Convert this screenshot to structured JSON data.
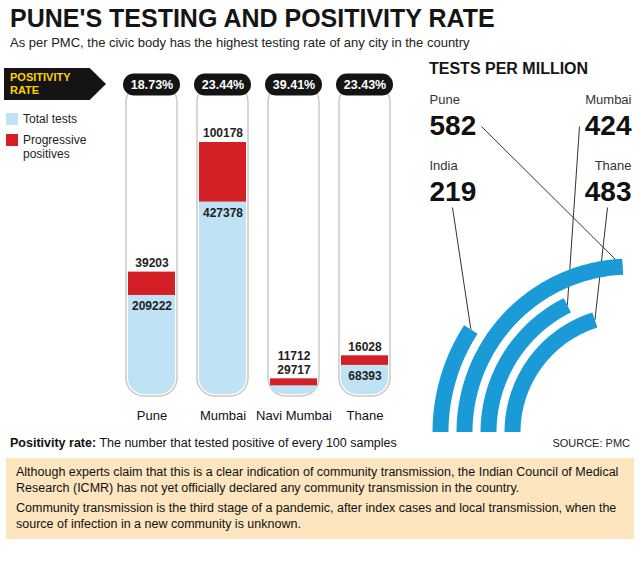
{
  "chart_data": [
    {
      "type": "bar",
      "title": "PUNE'S TESTING AND POSITIVITY RATE",
      "subtitle": "As per PMC, the civic body has the highest testing rate of any city in the country",
      "categories": [
        "Pune",
        "Mumbai",
        "Navi Mumbai",
        "Thane"
      ],
      "series": [
        {
          "name": "Total tests",
          "color": "#bfe2f4",
          "values": [
            209222,
            427378,
            29717,
            68393
          ]
        },
        {
          "name": "Progressive positives",
          "color": "#d41f26",
          "values": [
            39203,
            100178,
            11712,
            16028
          ]
        }
      ],
      "positivity_rate": {
        "label": "POSITIVITY RATE",
        "values": [
          18.73,
          23.44,
          39.41,
          23.43
        ],
        "value_labels": [
          "18.73%",
          "23.44%",
          "39.41%",
          "23.43%"
        ]
      },
      "ylim": [
        0,
        525000
      ],
      "tick_labels": "x",
      "legend": "top-left",
      "data_labels": true
    },
    {
      "type": "arc",
      "title": "TESTS PER MILLION",
      "categories": [
        "Pune",
        "Mumbai",
        "India",
        "Thane"
      ],
      "values": [
        582,
        424,
        219,
        483
      ],
      "color": "#1a9bd8",
      "ylim": [
        0,
        600
      ],
      "tick_labels": false,
      "data_labels": true
    }
  ],
  "note": {
    "term": "Positivity rate:",
    "text": "The number that tested positive of every 100 samples"
  },
  "source": "SOURCE: PMC",
  "paragraphs": [
    "Although experts claim that this is a clear indication of community transmission, the Indian Council of Medical Research (ICMR) has not yet officially declared any community transmission in the country.",
    "Community transmission is the third stage of a pandemic, after index cases and local transmission, when the source of infection in a new community is unknown."
  ]
}
